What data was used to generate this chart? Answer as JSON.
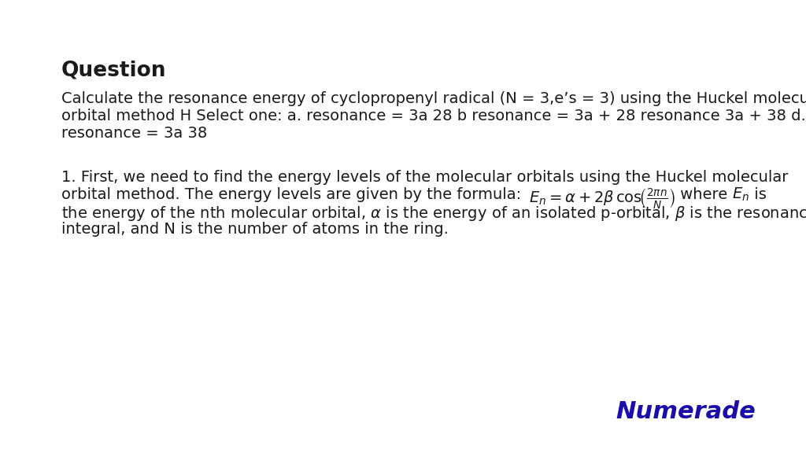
{
  "background_color": "#ffffff",
  "title": "Question",
  "title_fontsize": 19,
  "text_color": "#1a1a1a",
  "question_lines": [
    "Calculate the resonance energy of cyclopropenyl radical (N = 3,e’s = 3) using the Huckel molecular",
    "orbital method H Select one: a. resonance = 3a 28 b resonance = 3a + 28 resonance 3a + 38 d.",
    "resonance = 3a 38"
  ],
  "answer_line1": "1. First, we need to find the energy levels of the molecular orbitals using the Huckel molecular",
  "answer_line2_pre": "orbital method. The energy levels are given by the formula: ",
  "answer_line3": "the energy of the nth molecular orbital, $\\alpha$ is the energy of an isolated p-orbital, $\\beta$ is the resonance",
  "answer_line4": "integral, and N is the number of atoms in the ring.",
  "body_fontsize": 14,
  "numerade_text": "Numerade",
  "numerade_color": "#1a0dab",
  "numerade_fontsize": 22
}
